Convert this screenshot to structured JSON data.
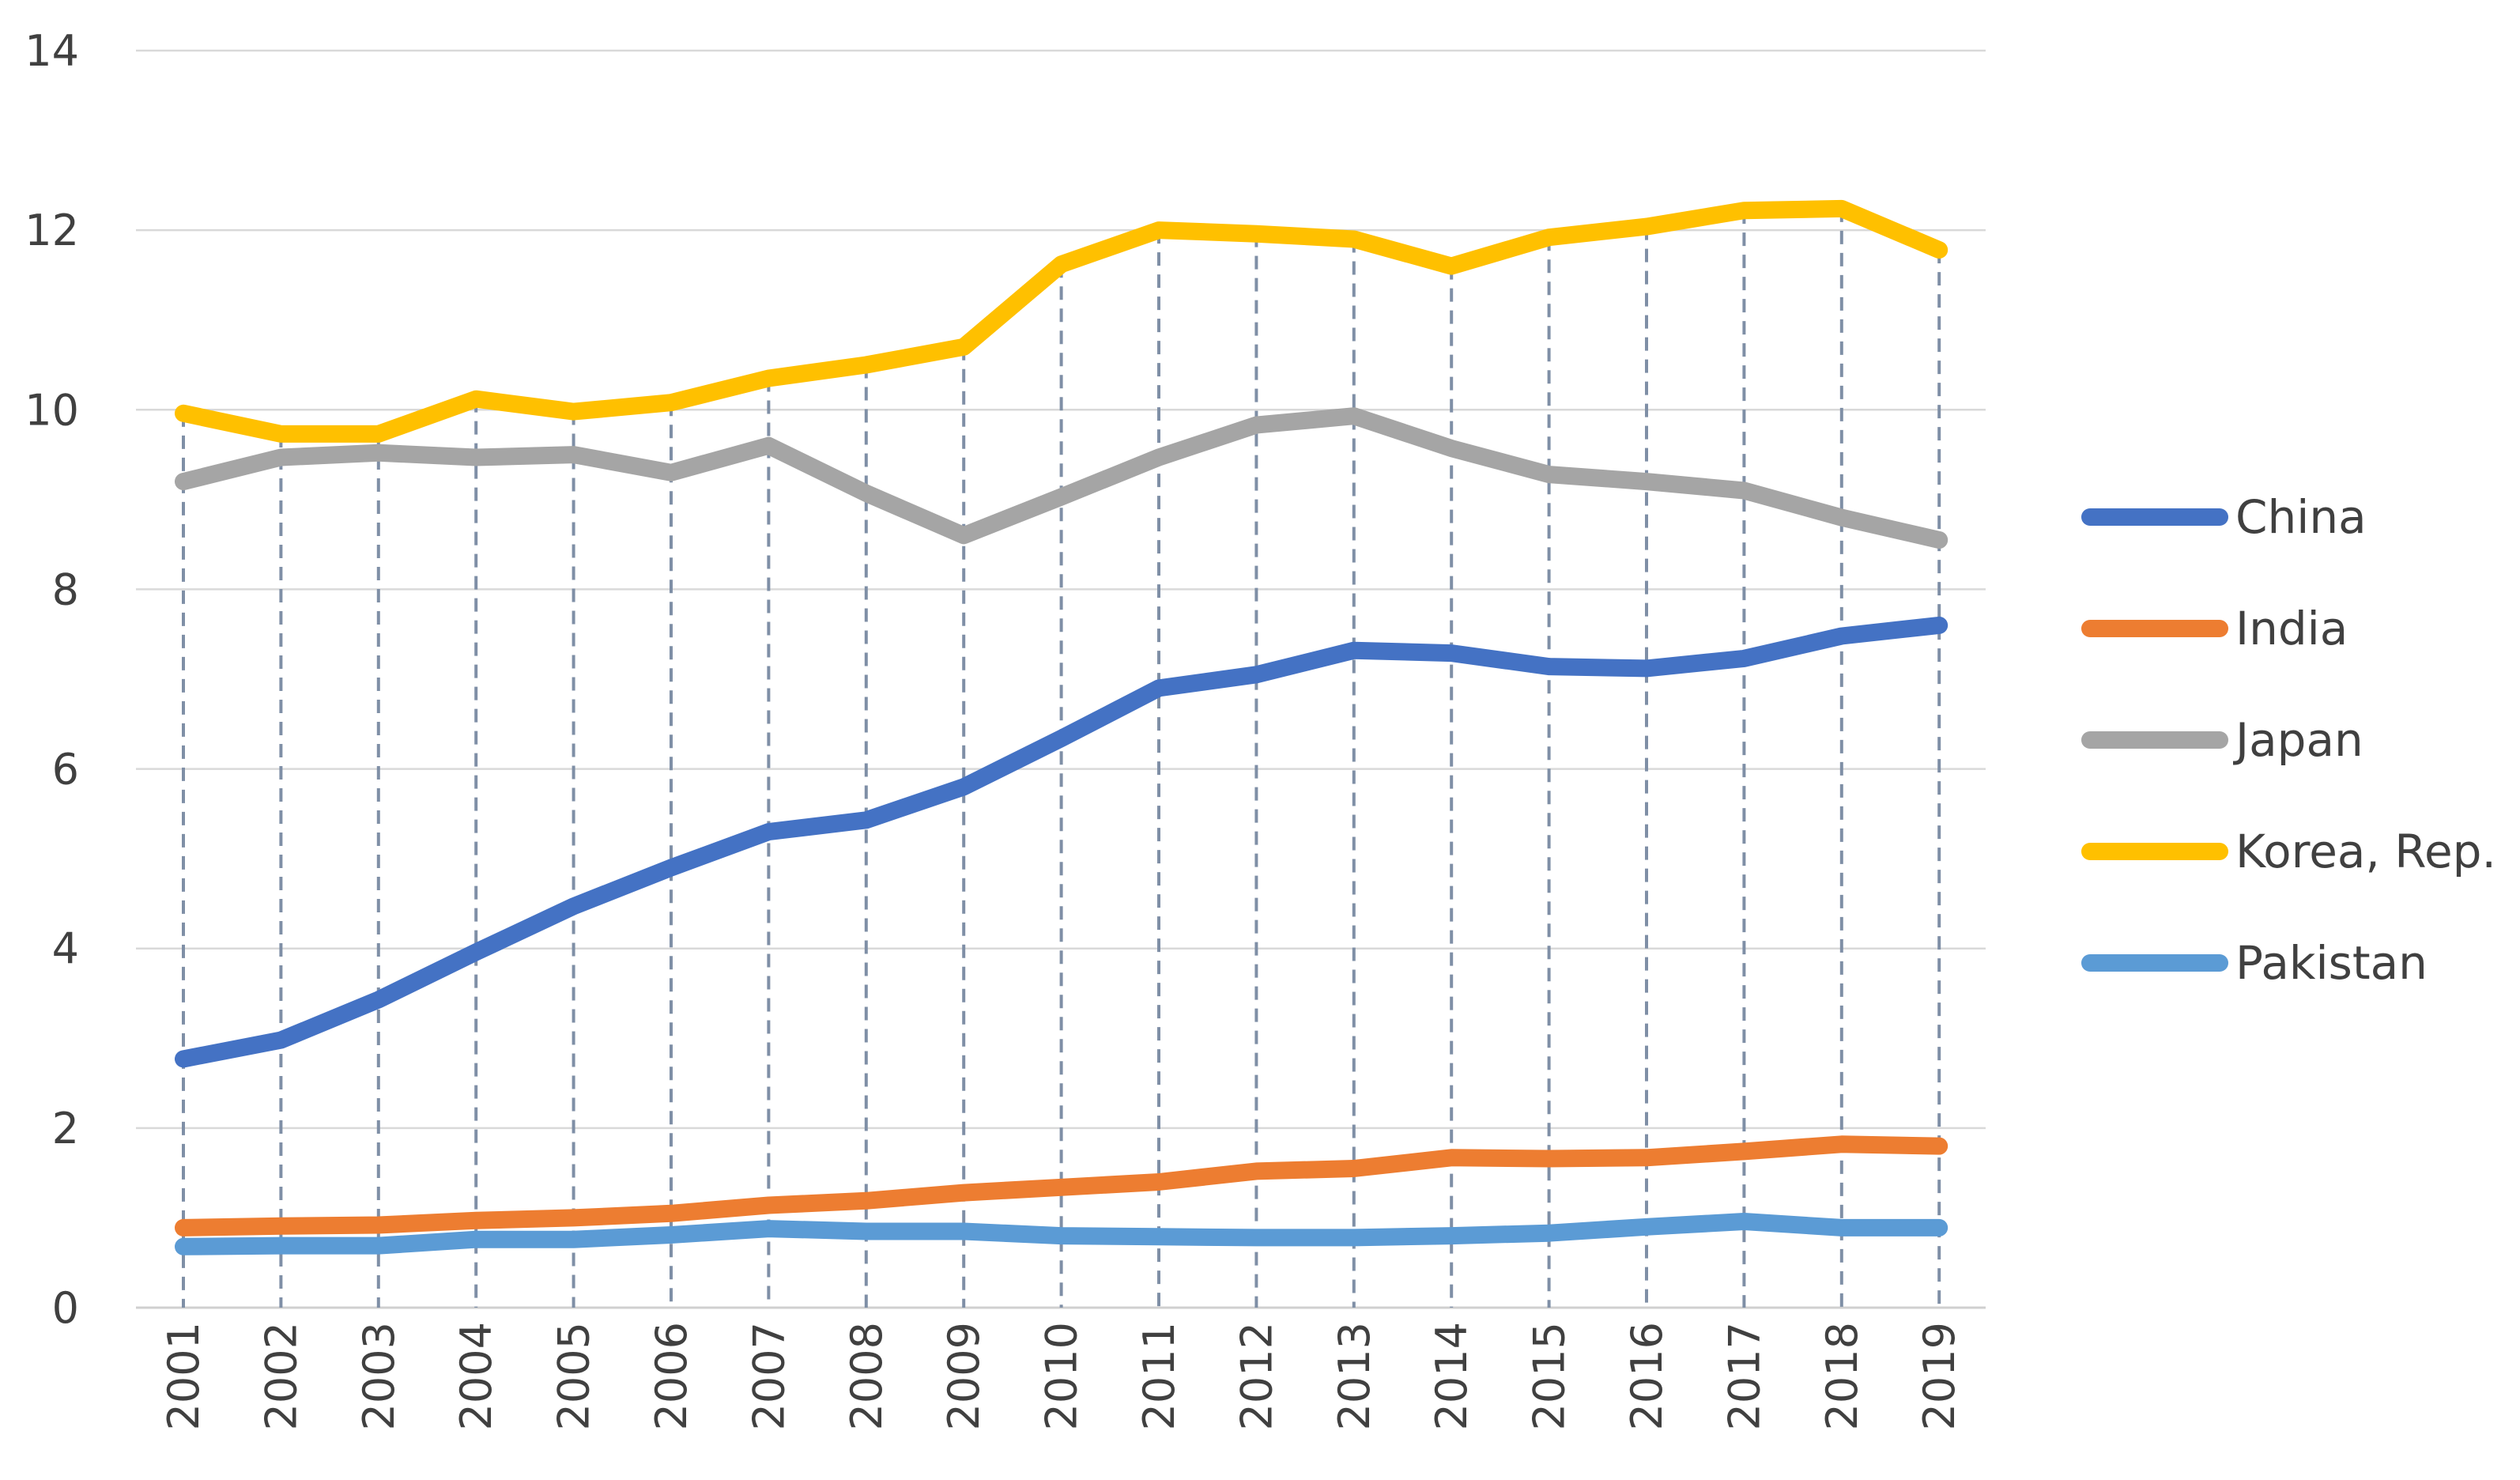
{
  "chart_data": {
    "type": "line",
    "title": "",
    "xlabel": "",
    "ylabel": "",
    "ylim": [
      0,
      14
    ],
    "yticks": [
      0,
      2,
      4,
      6,
      8,
      10,
      12,
      14
    ],
    "ytick_labels": [
      "0",
      "2",
      "4",
      "6",
      "8",
      "10",
      "12",
      "14"
    ],
    "grid": true,
    "legend_position": "right",
    "x": [
      "2001",
      "2002",
      "2003",
      "2004",
      "2005",
      "2006",
      "2007",
      "2008",
      "2009",
      "2010",
      "2011",
      "2012",
      "2013",
      "2014",
      "2015",
      "2016",
      "2017",
      "2018",
      "2019"
    ],
    "series": [
      {
        "name": "China",
        "color": "#4472C4",
        "values": [
          2.77,
          2.98,
          3.43,
          3.96,
          4.47,
          4.9,
          5.3,
          5.43,
          5.8,
          6.34,
          6.9,
          7.05,
          7.32,
          7.29,
          7.14,
          7.12,
          7.23,
          7.48,
          7.6
        ]
      },
      {
        "name": "India",
        "color": "#ED7D31",
        "values": [
          0.89,
          0.91,
          0.92,
          0.97,
          1.0,
          1.05,
          1.14,
          1.19,
          1.28,
          1.34,
          1.4,
          1.52,
          1.55,
          1.67,
          1.66,
          1.67,
          1.74,
          1.82,
          1.8
        ]
      },
      {
        "name": "Japan",
        "color": "#A5A5A5",
        "values": [
          9.2,
          9.47,
          9.52,
          9.47,
          9.5,
          9.3,
          9.6,
          9.07,
          8.6,
          9.03,
          9.47,
          9.83,
          9.93,
          9.57,
          9.28,
          9.2,
          9.1,
          8.8,
          8.55
        ]
      },
      {
        "name": "Korea, Rep.",
        "color": "#FFC000",
        "values": [
          9.96,
          9.73,
          9.73,
          10.12,
          9.98,
          10.08,
          10.35,
          10.5,
          10.7,
          11.62,
          12.0,
          11.96,
          11.9,
          11.6,
          11.92,
          12.04,
          12.22,
          12.24,
          11.78
        ]
      },
      {
        "name": "Pakistan",
        "color": "#5B9BD5",
        "values": [
          0.68,
          0.69,
          0.69,
          0.76,
          0.76,
          0.81,
          0.88,
          0.85,
          0.85,
          0.8,
          0.79,
          0.78,
          0.78,
          0.8,
          0.83,
          0.9,
          0.96,
          0.89,
          0.89
        ]
      }
    ]
  }
}
